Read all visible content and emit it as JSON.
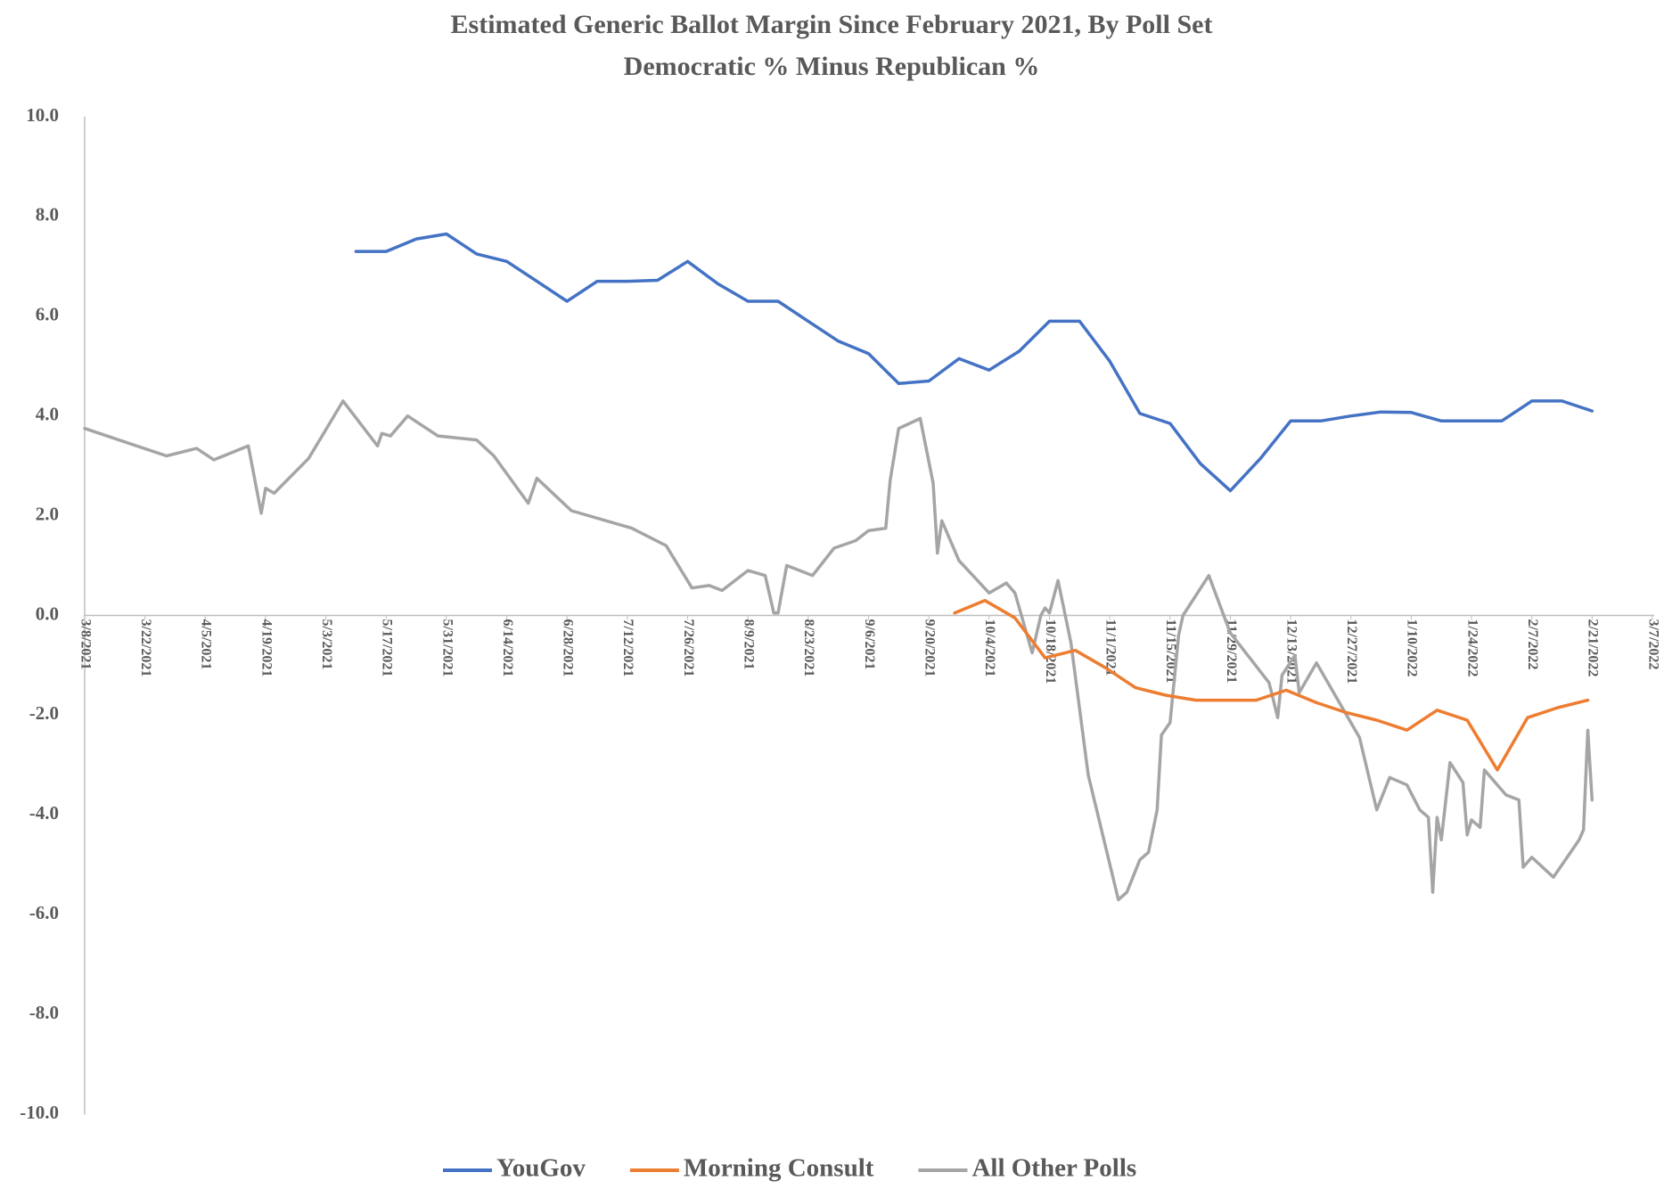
{
  "chart_data": {
    "type": "line",
    "title": "Estimated Generic Ballot Margin Since February 2021, By Poll Set",
    "subtitle": "Democratic % Minus Republican %",
    "xlim": [
      "3/8/2021",
      "3/7/2022"
    ],
    "xticks": [
      "3/8/2021",
      "3/22/2021",
      "4/5/2021",
      "4/19/2021",
      "5/3/2021",
      "5/17/2021",
      "5/31/2021",
      "6/14/2021",
      "6/28/2021",
      "7/12/2021",
      "7/26/2021",
      "8/9/2021",
      "8/23/2021",
      "9/6/2021",
      "9/20/2021",
      "10/4/2021",
      "10/18/2021",
      "11/1/2021",
      "11/15/2021",
      "11/29/2021",
      "12/13/2021",
      "12/27/2021",
      "1/10/2022",
      "1/24/2022",
      "2/7/2022",
      "2/21/2022",
      "3/7/2022"
    ],
    "ylim": [
      -10,
      10
    ],
    "yticks": [
      {
        "value": 10,
        "label": "10.0"
      },
      {
        "value": 8,
        "label": "8.0"
      },
      {
        "value": 6,
        "label": "6.0"
      },
      {
        "value": 4,
        "label": "4.0"
      },
      {
        "value": 2,
        "label": "2.0"
      },
      {
        "value": 0,
        "label": "0.0"
      },
      {
        "value": -2,
        "label": "-2.0"
      },
      {
        "value": -4,
        "label": "-4.0"
      },
      {
        "value": -6,
        "label": "-6.0"
      },
      {
        "value": -8,
        "label": "-8.0"
      },
      {
        "value": -10,
        "label": "-10.0"
      }
    ],
    "grid": false,
    "legend": "bottom",
    "series": [
      {
        "name": "YouGov",
        "color": "#4472c4",
        "x": [
          "5/10/2021",
          "5/17/2021",
          "5/24/2021",
          "5/31/2021",
          "6/7/2021",
          "6/14/2021",
          "6/21/2021",
          "6/28/2021",
          "7/5/2021",
          "7/12/2021",
          "7/19/2021",
          "7/26/2021",
          "8/2/2021",
          "8/9/2021",
          "8/16/2021",
          "8/23/2021",
          "8/30/2021",
          "9/6/2021",
          "9/13/2021",
          "9/20/2021",
          "9/27/2021",
          "10/4/2021",
          "10/11/2021",
          "10/18/2021",
          "10/25/2021",
          "11/1/2021",
          "11/8/2021",
          "11/15/2021",
          "11/22/2021",
          "11/29/2021",
          "12/6/2021",
          "12/13/2021",
          "12/20/2021",
          "12/27/2021",
          "1/3/2022",
          "1/10/2022",
          "1/17/2022",
          "1/24/2022",
          "1/31/2022",
          "2/7/2022",
          "2/14/2022",
          "2/21/2022"
        ],
        "values": [
          7.3,
          7.3,
          7.55,
          7.65,
          7.25,
          7.1,
          6.7,
          6.3,
          6.7,
          6.7,
          6.72,
          7.1,
          6.65,
          6.3,
          6.3,
          5.9,
          5.5,
          5.25,
          4.65,
          4.7,
          5.15,
          4.92,
          5.3,
          5.9,
          5.9,
          5.1,
          4.05,
          3.85,
          3.05,
          2.5,
          3.15,
          3.9,
          3.9,
          4.0,
          4.08,
          4.07,
          3.9,
          3.9,
          3.9,
          4.3,
          4.3,
          4.1
        ]
      },
      {
        "name": "Morning Consult",
        "color": "#ed7d31",
        "x": [
          "9/26/2021",
          "10/3/2021",
          "10/10/2021",
          "10/17/2021",
          "10/24/2021",
          "10/31/2021",
          "11/7/2021",
          "11/14/2021",
          "11/21/2021",
          "11/28/2021",
          "12/5/2021",
          "12/12/2021",
          "12/19/2021",
          "12/26/2021",
          "1/2/2022",
          "1/9/2022",
          "1/16/2022",
          "1/23/2022",
          "1/30/2022",
          "2/6/2022",
          "2/13/2022",
          "2/20/2022"
        ],
        "values": [
          0.05,
          0.3,
          -0.05,
          -0.85,
          -0.7,
          -1.05,
          -1.45,
          -1.6,
          -1.7,
          -1.7,
          -1.7,
          -1.5,
          -1.75,
          -1.95,
          -2.1,
          -2.3,
          -1.9,
          -2.1,
          -3.1,
          -2.05,
          -1.85,
          -1.7
        ]
      },
      {
        "name": "All Other Polls",
        "color": "#a5a5a5",
        "x": [
          "3/8/2021",
          "3/27/2021",
          "4/3/2021",
          "4/7/2021",
          "4/15/2021",
          "4/18/2021",
          "4/19/2021",
          "4/21/2021",
          "4/29/2021",
          "5/7/2021",
          "5/15/2021",
          "5/16/2021",
          "5/18/2021",
          "5/22/2021",
          "5/29/2021",
          "6/7/2021",
          "6/11/2021",
          "6/19/2021",
          "6/21/2021",
          "6/29/2021",
          "7/13/2021",
          "7/21/2021",
          "7/27/2021",
          "7/31/2021",
          "8/3/2021",
          "8/9/2021",
          "8/13/2021",
          "8/15/2021",
          "8/16/2021",
          "8/18/2021",
          "8/24/2021",
          "8/29/2021",
          "9/3/2021",
          "9/6/2021",
          "9/10/2021",
          "9/11/2021",
          "9/13/2021",
          "9/18/2021",
          "9/21/2021",
          "9/22/2021",
          "9/23/2021",
          "9/27/2021",
          "10/4/2021",
          "10/8/2021",
          "10/10/2021",
          "10/14/2021",
          "10/16/2021",
          "10/17/2021",
          "10/18/2021",
          "10/20/2021",
          "10/23/2021",
          "10/27/2021",
          "11/3/2021",
          "11/5/2021",
          "11/8/2021",
          "11/10/2021",
          "11/12/2021",
          "11/13/2021",
          "11/15/2021",
          "11/17/2021",
          "11/18/2021",
          "11/24/2021",
          "11/29/2021",
          "12/8/2021",
          "12/10/2021",
          "12/11/2021",
          "12/14/2021",
          "12/15/2021",
          "12/19/2021",
          "12/23/2021",
          "12/29/2021",
          "1/2/2022",
          "1/5/2022",
          "1/9/2022",
          "1/12/2022",
          "1/14/2022",
          "1/15/2022",
          "1/16/2022",
          "1/17/2022",
          "1/19/2022",
          "1/22/2022",
          "1/23/2022",
          "1/24/2022",
          "1/26/2022",
          "1/27/2022",
          "2/1/2022",
          "2/4/2022",
          "2/5/2022",
          "2/7/2022",
          "2/12/2022",
          "2/16/2022",
          "2/18/2022",
          "2/19/2022",
          "2/20/2022",
          "2/21/2022"
        ],
        "values": [
          3.75,
          3.2,
          3.35,
          3.12,
          3.4,
          2.05,
          2.55,
          2.45,
          3.15,
          4.3,
          3.4,
          3.65,
          3.6,
          4.0,
          3.6,
          3.52,
          3.2,
          2.25,
          2.75,
          2.1,
          1.75,
          1.4,
          0.55,
          0.6,
          0.5,
          0.9,
          0.8,
          0.05,
          0.05,
          1.0,
          0.8,
          1.35,
          1.5,
          1.7,
          1.75,
          2.7,
          3.75,
          3.95,
          2.65,
          1.25,
          1.9,
          1.1,
          0.45,
          0.65,
          0.45,
          -0.75,
          0.0,
          0.15,
          0.05,
          0.7,
          -0.55,
          -3.2,
          -5.7,
          -5.55,
          -4.9,
          -4.75,
          -3.9,
          -2.4,
          -2.15,
          -0.4,
          0.0,
          0.8,
          -0.35,
          -1.35,
          -2.05,
          -1.2,
          -0.8,
          -1.55,
          -0.95,
          -1.55,
          -2.45,
          -3.9,
          -3.25,
          -3.4,
          -3.9,
          -4.05,
          -5.55,
          -4.05,
          -4.5,
          -2.95,
          -3.35,
          -4.4,
          -4.1,
          -4.25,
          -3.1,
          -3.6,
          -3.7,
          -5.05,
          -4.85,
          -5.25,
          -4.75,
          -4.5,
          -4.3,
          -2.3,
          -3.7
        ]
      }
    ]
  }
}
